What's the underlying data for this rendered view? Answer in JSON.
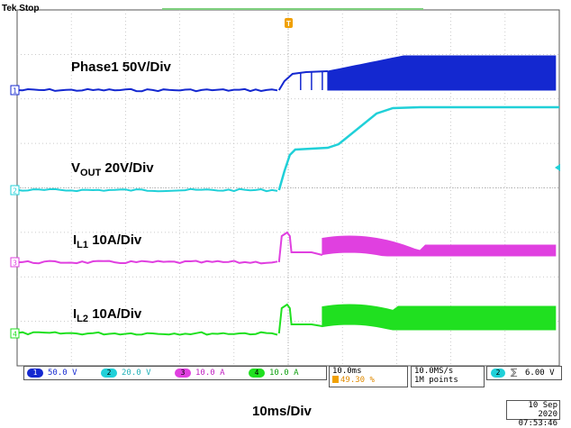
{
  "header": {
    "status": "Tek Stop"
  },
  "trigger_marker": "T",
  "chart_data": {
    "type": "line",
    "title": "",
    "time_per_div": "10ms/Div",
    "grid": true,
    "grid_divisions": {
      "x": 10,
      "y": 8
    },
    "series": [
      {
        "channel": "1",
        "name": "Phase1",
        "scale": "50V/Div",
        "color": "#1428d0",
        "description": "flat near 0 V, ramps after trigger, switching envelope rises to ~1 div by 40 ms"
      },
      {
        "channel": "2",
        "name": "VOUT",
        "scale": "20V/Div",
        "color": "#20d0d8",
        "description": "soft-start ramp to ~2.2 div at ~5 ms, plateau, rises to ~4.1 div, flat after 25 ms"
      },
      {
        "channel": "3",
        "name": "IL1",
        "scale": "10A/Div",
        "color": "#e040e0",
        "description": "inrush spike at trigger, ripple band settles ~0.3 div"
      },
      {
        "channel": "4",
        "name": "IL2",
        "scale": "10A/Div",
        "color": "#20e020",
        "description": "inrush spike at trigger, ripple band widens to ~1 div"
      }
    ]
  },
  "labels": {
    "phase1": "Phase1 50V/Div",
    "vout_main": "V",
    "vout_sub": "OUT",
    "vout_scale": "20V/Div",
    "il1_main": "I",
    "il1_sub": "L1",
    "il1_scale": "10A/Div",
    "il2_main": "I",
    "il2_sub": "L2",
    "il2_scale": "10A/Div",
    "x_division": "10ms/Div"
  },
  "status_bar": {
    "ch1": {
      "num": "1",
      "value": "50.0 V",
      "color": "#1428d0"
    },
    "ch2": {
      "num": "2",
      "value": "20.0 V",
      "color": "#20d0d8"
    },
    "ch3": {
      "num": "3",
      "value": "10.0 A",
      "color": "#e040e0"
    },
    "ch4": {
      "num": "4",
      "value": "10.0 A",
      "color": "#20e020"
    },
    "timebase": "10.0ms",
    "trigger_pos": "49.30 %",
    "sample_rate": "10.0MS/s",
    "record_length": "1M points",
    "trig_channel": "2",
    "trig_level": "6.00 V"
  },
  "date": {
    "day": "10 Sep  2020",
    "time": "07:53:46"
  }
}
